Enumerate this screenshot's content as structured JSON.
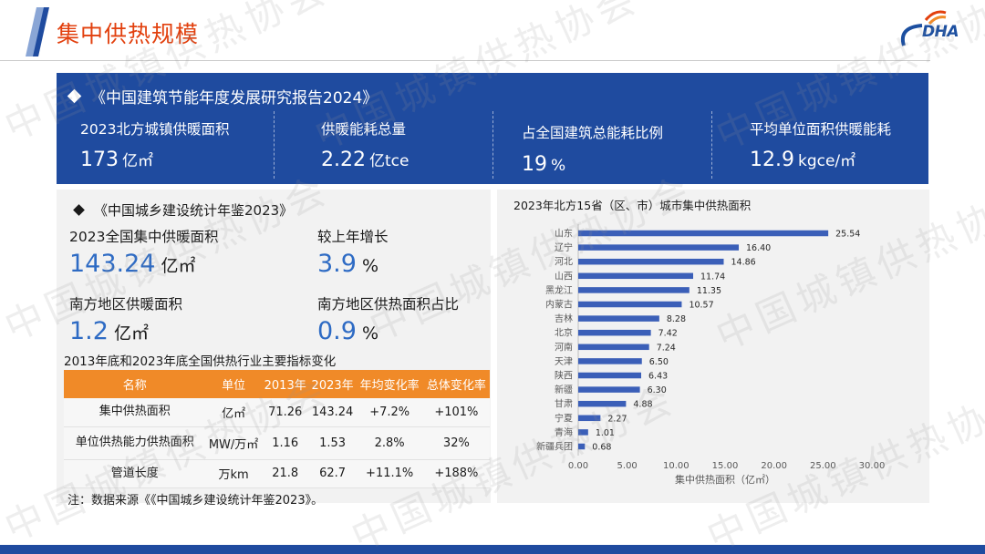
{
  "header": {
    "title": "集中供热规模",
    "logo_text": "DHA"
  },
  "watermark": "中国城镇供热协会",
  "band": {
    "title": "《中国建筑节能年度发展研究报告2024》",
    "stats": [
      {
        "label": "2023北方城镇供暖面积",
        "value": "173",
        "unit": "亿㎡"
      },
      {
        "label": "供暖能耗总量",
        "value": "2.22",
        "unit": "亿tce"
      },
      {
        "label": "占全国建筑总能耗比例",
        "value": "19",
        "unit": "%"
      },
      {
        "label": "平均单位面积供暖能耗",
        "value": "12.9",
        "unit": "kgce/㎡"
      }
    ]
  },
  "left": {
    "title": "《中国城乡建设统计年鉴2023》",
    "kpis": [
      {
        "label": "2023全国集中供暖面积",
        "value": "143.24",
        "unit": "亿㎡"
      },
      {
        "label": "较上年增长",
        "value": "3.9",
        "unit": "%"
      },
      {
        "label": "南方地区供暖面积",
        "value": "1.2",
        "unit": "亿㎡"
      },
      {
        "label": "南方地区供热面积占比",
        "value": "0.9",
        "unit": "%"
      }
    ],
    "table_title": "2013年底和2023年底全国供热行业主要指标变化",
    "table": {
      "headers": [
        "名称",
        "单位",
        "2013年",
        "2023年",
        "年均变化率",
        "总体变化率"
      ],
      "rows": [
        [
          "集中供热面积",
          "亿㎡",
          "71.26",
          "143.24",
          "+7.2%",
          "+101%"
        ],
        [
          "单位供热能力供热面积",
          "MW/万㎡",
          "1.16",
          "1.53",
          "2.8%",
          "32%"
        ],
        [
          "管道长度",
          "万km",
          "21.8",
          "62.7",
          "+11.1%",
          "+188%"
        ]
      ]
    },
    "note": "注：数据来源《《中国城乡建设统计年鉴2023》。"
  },
  "chart_data": {
    "type": "bar",
    "orientation": "horizontal",
    "title": "2023年北方15省（区、市）城市集中供热面积",
    "xlabel": "集中供热面积（亿㎡）",
    "ylabel": "",
    "categories": [
      "山东",
      "辽宁",
      "河北",
      "山西",
      "黑龙江",
      "内蒙古",
      "吉林",
      "北京",
      "河南",
      "天津",
      "陕西",
      "新疆",
      "甘肃",
      "宁夏",
      "青海",
      "新疆兵团"
    ],
    "values": [
      25.54,
      16.4,
      14.86,
      11.74,
      11.35,
      10.57,
      8.28,
      7.42,
      7.24,
      6.5,
      6.43,
      6.3,
      4.88,
      2.27,
      1.01,
      0.68
    ],
    "value_labels": [
      "25.54",
      "16.40",
      "14.86",
      "11.74",
      "11.35",
      "10.57",
      "8.28",
      "7.42",
      "7.24",
      "6.50",
      "6.43",
      "6.30",
      "4.88",
      "2.27",
      "1.01",
      "0.68"
    ],
    "xlim": [
      0,
      30
    ],
    "xticks": [
      0,
      5,
      10,
      15,
      20,
      25,
      30
    ],
    "xtick_labels": [
      "0.00",
      "5.00",
      "10.00",
      "15.00",
      "20.00",
      "25.00",
      "30.00"
    ],
    "grid": false,
    "bar_color": "#3b5fb8"
  }
}
